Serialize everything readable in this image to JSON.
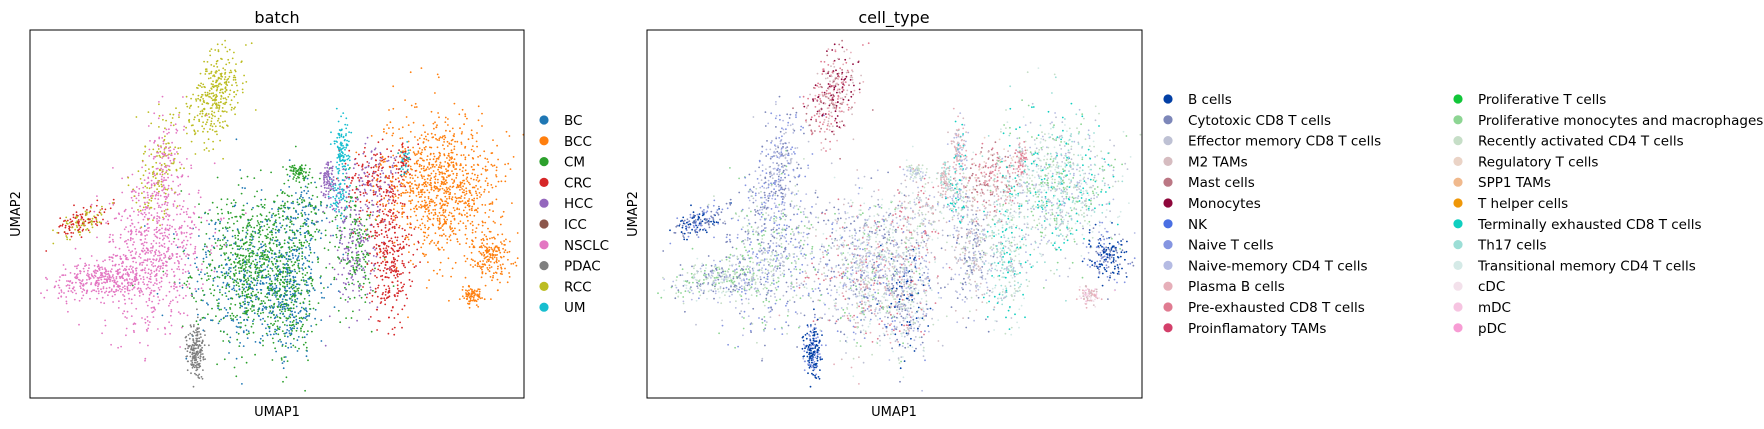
{
  "chart_data": [
    {
      "type": "scatter",
      "title": "batch",
      "xlabel": "UMAP1",
      "ylabel": "UMAP2",
      "xticks": [],
      "yticks": [],
      "grid": false,
      "legend_position": "right",
      "legend_columns": 1,
      "series": [
        {
          "name": "BC",
          "color": "#1f77b4"
        },
        {
          "name": "BCC",
          "color": "#ff7f0e"
        },
        {
          "name": "CM",
          "color": "#2ca02c"
        },
        {
          "name": "CRC",
          "color": "#d62728"
        },
        {
          "name": "HCC",
          "color": "#9467bd"
        },
        {
          "name": "ICC",
          "color": "#8c564b"
        },
        {
          "name": "NSCLC",
          "color": "#e377c2"
        },
        {
          "name": "PDAC",
          "color": "#7f7f7f"
        },
        {
          "name": "RCC",
          "color": "#bcbd22"
        },
        {
          "name": "UM",
          "color": "#17becf"
        }
      ]
    },
    {
      "type": "scatter",
      "title": "cell_type",
      "xlabel": "UMAP1",
      "ylabel": "UMAP2",
      "xticks": [],
      "yticks": [],
      "grid": false,
      "legend_position": "right",
      "legend_columns": 2,
      "series": [
        {
          "name": "B cells",
          "color": "#023fa5"
        },
        {
          "name": "Cytotoxic CD8 T cells",
          "color": "#7d87b9"
        },
        {
          "name": "Effector memory CD8 T cells",
          "color": "#bec1d4"
        },
        {
          "name": "M2 TAMs",
          "color": "#d6bcc0"
        },
        {
          "name": "Mast cells",
          "color": "#bb7784"
        },
        {
          "name": "Monocytes",
          "color": "#8e063b"
        },
        {
          "name": "NK",
          "color": "#4a6fe3"
        },
        {
          "name": "Naive T cells",
          "color": "#8595e1"
        },
        {
          "name": "Naive-memory CD4 T cells",
          "color": "#b5bbe3"
        },
        {
          "name": "Plasma B cells",
          "color": "#e6afb9"
        },
        {
          "name": "Pre-exhausted CD8 T cells",
          "color": "#e07b91"
        },
        {
          "name": "Proinflamatory TAMs",
          "color": "#d33f6a"
        },
        {
          "name": "Proliferative T cells",
          "color": "#11c638"
        },
        {
          "name": "Proliferative monocytes and macrophages",
          "color": "#8dd593"
        },
        {
          "name": "Recently activated CD4 T cells",
          "color": "#c6dec7"
        },
        {
          "name": "Regulatory T cells",
          "color": "#ead3c6"
        },
        {
          "name": "SPP1 TAMs",
          "color": "#f0b98d"
        },
        {
          "name": "T helper cells",
          "color": "#ef9708"
        },
        {
          "name": "Terminally exhausted CD8 T cells",
          "color": "#0fcfc0"
        },
        {
          "name": "Th17 cells",
          "color": "#9cded6"
        },
        {
          "name": "Transitional memory CD4 T cells",
          "color": "#d5eae7"
        },
        {
          "name": "cDC",
          "color": "#f3e1eb"
        },
        {
          "name": "mDC",
          "color": "#f6c4e1"
        },
        {
          "name": "pDC",
          "color": "#f79cd4"
        }
      ]
    }
  ]
}
